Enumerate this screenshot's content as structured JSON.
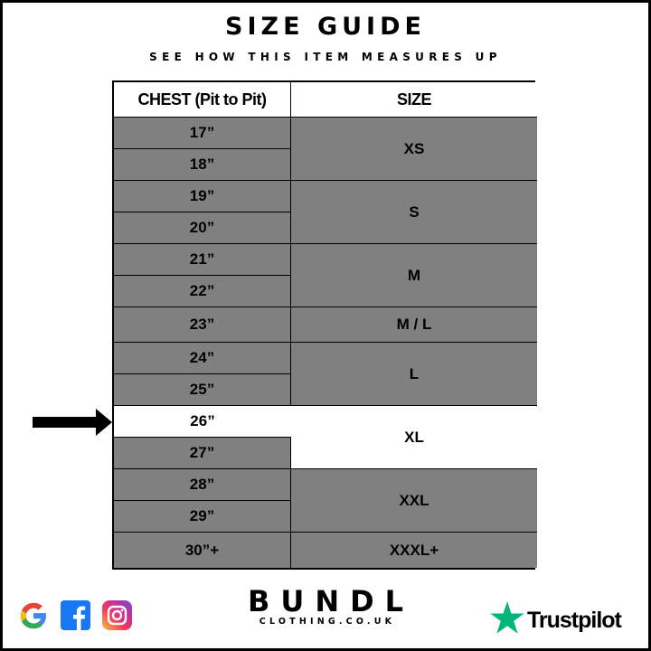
{
  "header": {
    "title": "SIZE GUIDE",
    "subtitle": "SEE HOW THIS ITEM MEASURES UP"
  },
  "table": {
    "columns": [
      "CHEST (Pit to Pit)",
      "SIZE"
    ],
    "chest": [
      "17”",
      "18”",
      "19”",
      "20”",
      "21”",
      "22”",
      "23”",
      "24”",
      "25”",
      "26”",
      "27”",
      "28”",
      "29”",
      "30”+"
    ],
    "sizes": [
      "XS",
      "S",
      "M",
      "M / L",
      "L",
      "XL",
      "XXL",
      "XXXL+"
    ],
    "highlighted_chest": "26”",
    "highlighted_size": "XL",
    "highlight_color": "#ffffff",
    "cell_color": "#808080"
  },
  "brand": {
    "name": "BUNDL",
    "site": "CLOTHING.CO.UK"
  },
  "footer": {
    "social_icons": [
      "google-icon",
      "facebook-icon",
      "instagram-icon"
    ],
    "trustpilot": "Trustpilot",
    "trustpilot_color": "#00b67a"
  }
}
